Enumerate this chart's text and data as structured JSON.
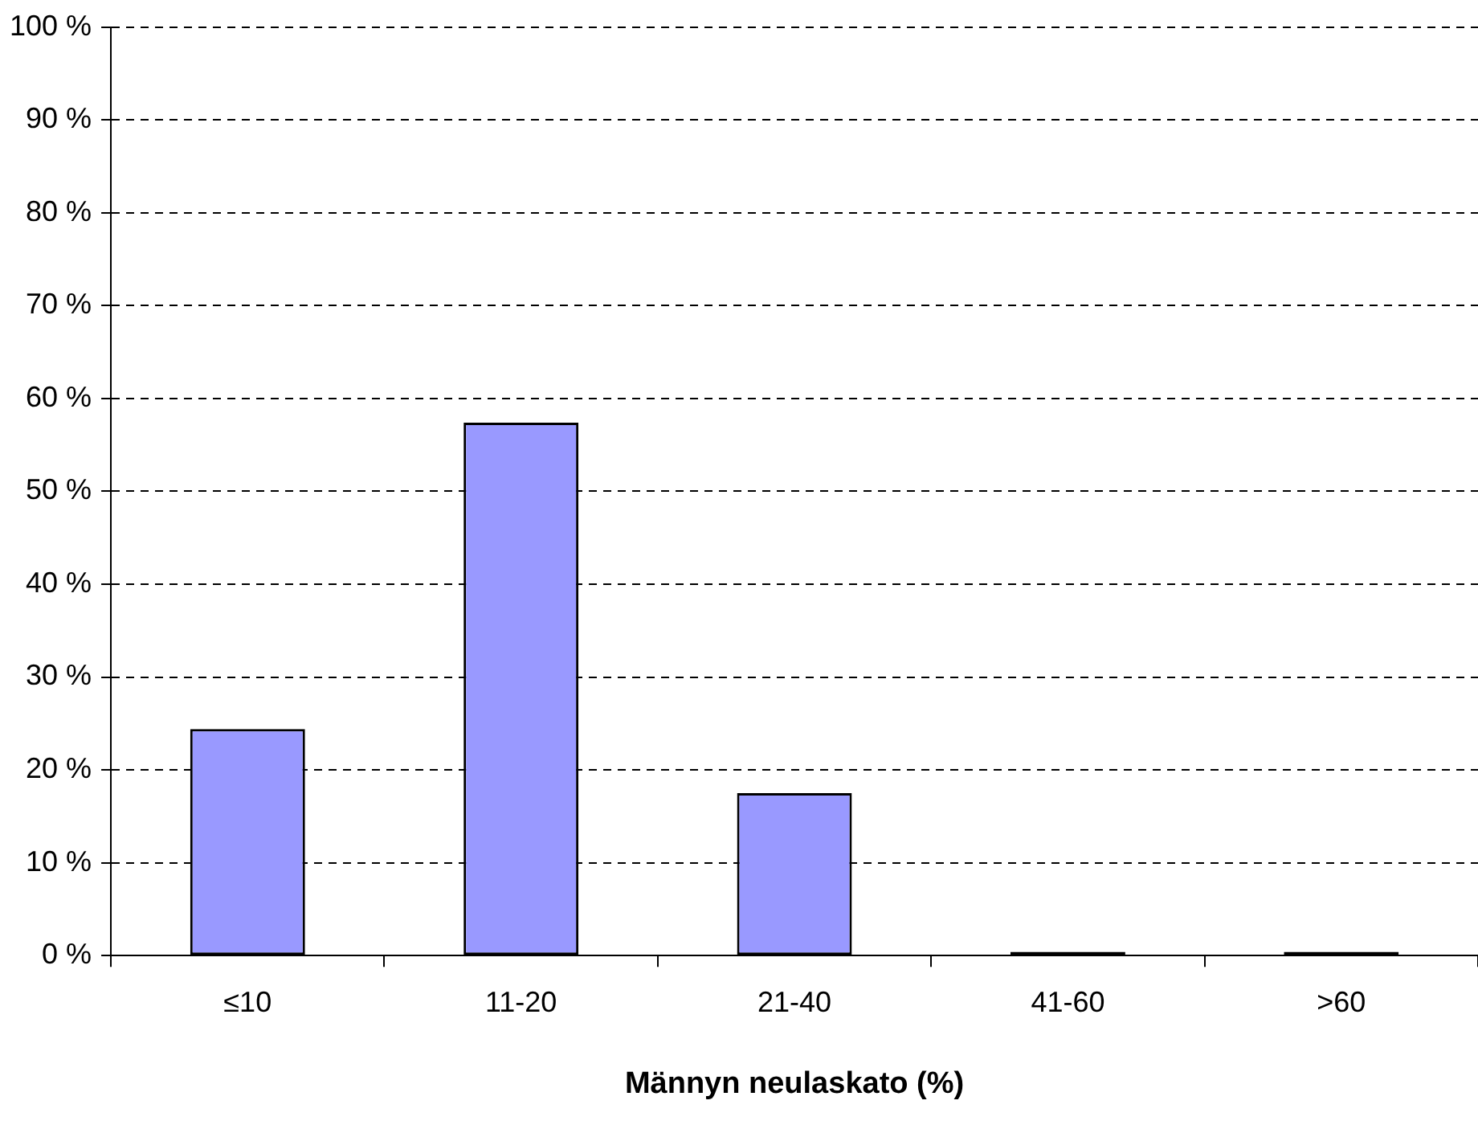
{
  "chart_data": {
    "type": "bar",
    "xlabel": "Männyn neulaskato (%)",
    "categories": [
      "≤10",
      "11-20",
      "21-40",
      "41-60",
      ">60"
    ],
    "values": [
      24.4,
      57.4,
      17.5,
      0.4,
      0.4
    ],
    "colors": [
      "#9999ff",
      "#9999ff",
      "#9999ff",
      "#000000",
      "#000000"
    ],
    "ylim": [
      0,
      100
    ],
    "yticks": [
      {
        "value": 0,
        "label": "0 %"
      },
      {
        "value": 10,
        "label": "10 %"
      },
      {
        "value": 20,
        "label": "20 %"
      },
      {
        "value": 30,
        "label": "30 %"
      },
      {
        "value": 40,
        "label": "40 %"
      },
      {
        "value": 50,
        "label": "50 %"
      },
      {
        "value": 60,
        "label": "60 %"
      },
      {
        "value": 70,
        "label": "70 %"
      },
      {
        "value": 80,
        "label": "80 %"
      },
      {
        "value": 90,
        "label": "90 %"
      },
      {
        "value": 100,
        "label": "100 %"
      }
    ],
    "grid": "y",
    "legend": false
  }
}
